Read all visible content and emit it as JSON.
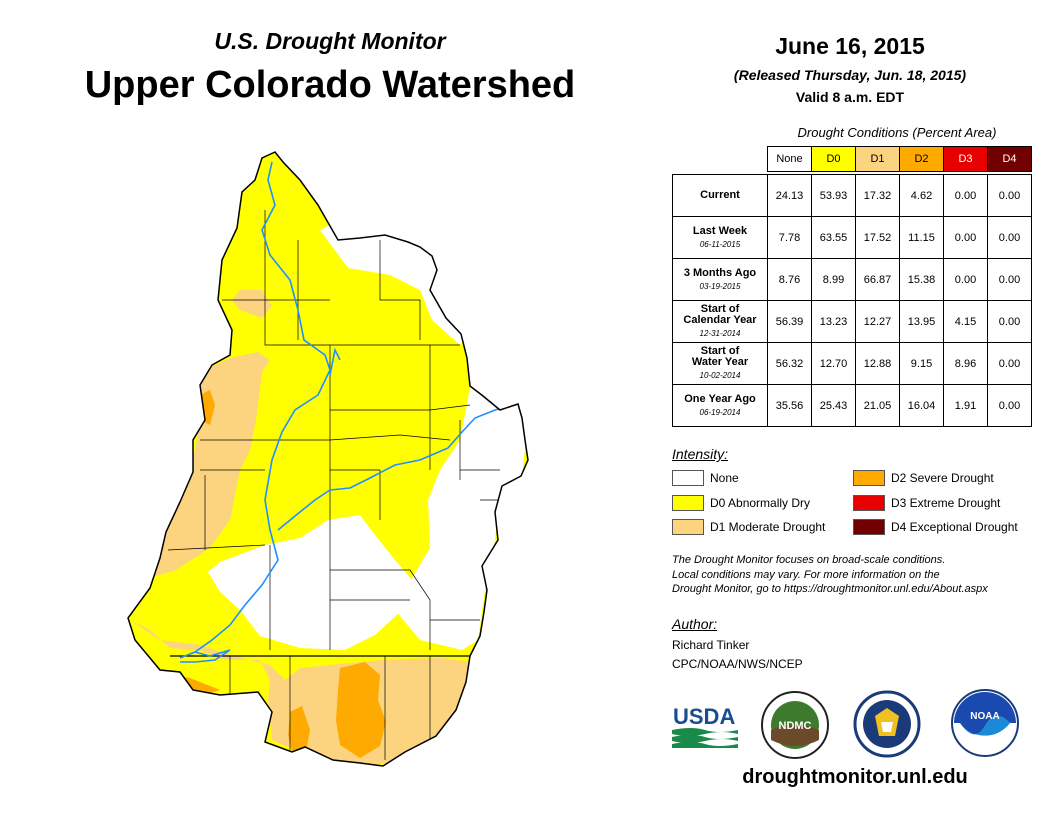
{
  "header": {
    "subtitle": "U.S. Drought Monitor",
    "title": "Upper Colorado Watershed",
    "date": "June 16, 2015",
    "released": "(Released Thursday, Jun. 18, 2015)",
    "valid": "Valid 8 a.m. EDT"
  },
  "table": {
    "caption": "Drought Conditions (Percent Area)",
    "columns": [
      {
        "label": "None",
        "color": "#ffffff"
      },
      {
        "label": "D0",
        "color": "#ffff00"
      },
      {
        "label": "D1",
        "color": "#fcd37f"
      },
      {
        "label": "D2",
        "color": "#ffaa00"
      },
      {
        "label": "D3",
        "color": "#e60000"
      },
      {
        "label": "D4",
        "color": "#730000"
      }
    ],
    "rows": [
      {
        "label": "Current",
        "label2": "",
        "sub": "",
        "values": [
          "24.13",
          "53.93",
          "17.32",
          "4.62",
          "0.00",
          "0.00"
        ]
      },
      {
        "label": "Last Week",
        "label2": "",
        "sub": "06-11-2015",
        "values": [
          "7.78",
          "63.55",
          "17.52",
          "11.15",
          "0.00",
          "0.00"
        ]
      },
      {
        "label": "3 Months Ago",
        "label2": "",
        "sub": "03-19-2015",
        "values": [
          "8.76",
          "8.99",
          "66.87",
          "15.38",
          "0.00",
          "0.00"
        ]
      },
      {
        "label": "Start of",
        "label2": "Calendar Year",
        "sub": "12-31-2014",
        "values": [
          "56.39",
          "13.23",
          "12.27",
          "13.95",
          "4.15",
          "0.00"
        ]
      },
      {
        "label": "Start of",
        "label2": "Water Year",
        "sub": "10-02-2014",
        "values": [
          "56.32",
          "12.70",
          "12.88",
          "9.15",
          "8.96",
          "0.00"
        ]
      },
      {
        "label": "One Year Ago",
        "label2": "",
        "sub": "06-19-2014",
        "values": [
          "35.56",
          "25.43",
          "21.05",
          "16.04",
          "1.91",
          "0.00"
        ]
      }
    ]
  },
  "legend": {
    "title": "Intensity:",
    "items": [
      {
        "label": "None",
        "color": "#ffffff"
      },
      {
        "label": "D0 Abnormally Dry",
        "color": "#ffff00"
      },
      {
        "label": "D1 Moderate Drought",
        "color": "#fcd37f"
      },
      {
        "label": "D2 Severe Drought",
        "color": "#ffaa00"
      },
      {
        "label": "D3 Extreme Drought",
        "color": "#e60000"
      },
      {
        "label": "D4 Exceptional Drought",
        "color": "#730000"
      }
    ]
  },
  "note": {
    "line1": "The Drought Monitor focuses on broad-scale conditions.",
    "line2": "Local conditions may vary. For more information on the",
    "line3": "Drought Monitor, go to https://droughtmonitor.unl.edu/About.aspx"
  },
  "author": {
    "title": "Author:",
    "name": "Richard Tinker",
    "org": "CPC/NOAA/NWS/NCEP"
  },
  "logos": {
    "usda": "USDA",
    "ndmc": "NDMC",
    "noaa": "NOAA"
  },
  "footer": {
    "url": "droughtmonitor.unl.edu"
  },
  "colors": {
    "none": "#ffffff",
    "d0": "#ffff00",
    "d1": "#fcd37f",
    "d2": "#ffaa00",
    "river": "#1e90ff",
    "boundary": "#000000"
  }
}
